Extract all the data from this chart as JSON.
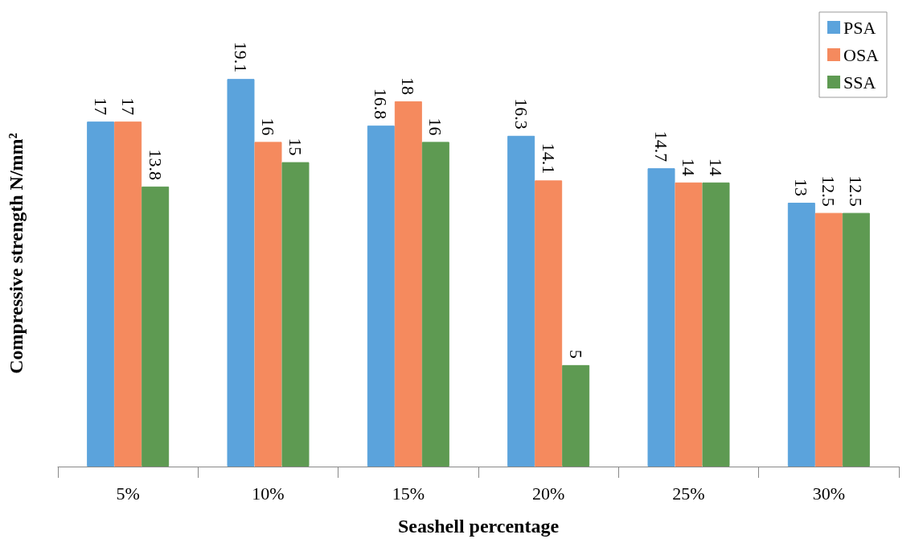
{
  "chart_data": {
    "type": "bar",
    "xlabel": "Seashell percentage",
    "ylabel": "Compressive strength N/mm²",
    "categories": [
      "5%",
      "10%",
      "15%",
      "20%",
      "25%",
      "30%"
    ],
    "series": [
      {
        "name": "PSA",
        "color": "#5ba3dc",
        "values": [
          17,
          19.1,
          16.8,
          16.3,
          14.7,
          13
        ]
      },
      {
        "name": "OSA",
        "color": "#f58a5e",
        "values": [
          17,
          16,
          18,
          14.1,
          14,
          12.5
        ]
      },
      {
        "name": "SSA",
        "color": "#5e9a52",
        "values": [
          13.8,
          15,
          16,
          5,
          14,
          12.5
        ]
      }
    ],
    "data_labels": true,
    "legend": "top right",
    "grid": false
  }
}
